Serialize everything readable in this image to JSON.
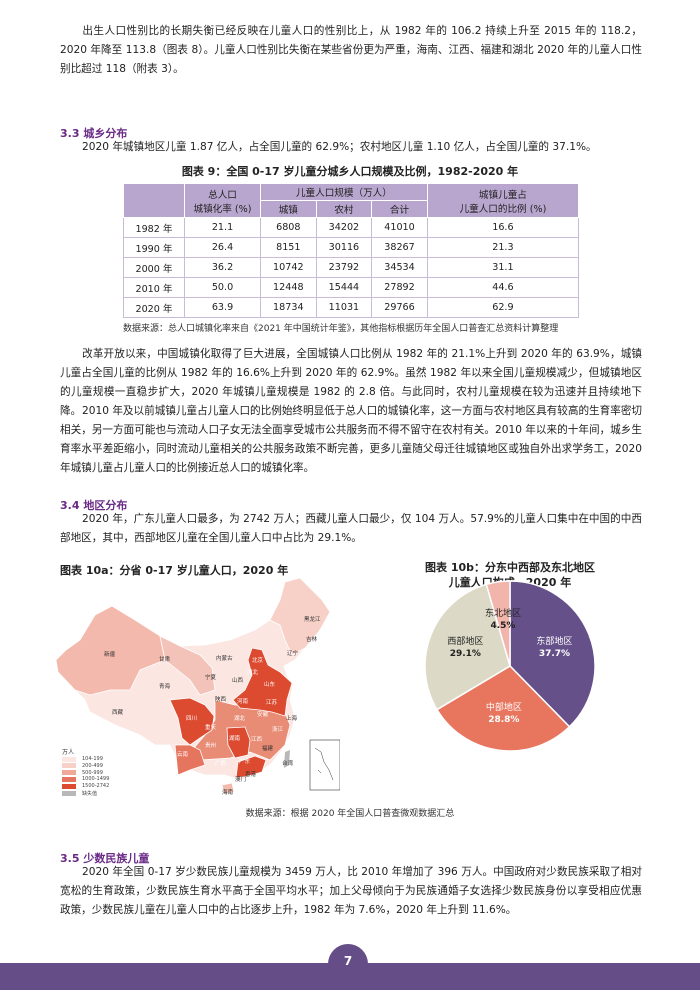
{
  "paragraphs": {
    "p1": "出生人口性别比的长期失衡已经反映在儿童人口的性别比上，从 1982 年的 106.2 持续上升至 2015 年的 118.2，2020 年降至 113.8（图表 8）。儿童人口性别比失衡在某些省份更为严重，海南、江西、福建和湖北 2020 年的儿童人口性别比超过 118（附表 3）。",
    "s33_title": "3.3 城乡分布",
    "p2": "2020 年城镇地区儿童 1.87 亿人，占全国儿童的 62.9%；农村地区儿童 1.10 亿人，占全国儿童的 37.1%。",
    "p3": "改革开放以来，中国城镇化取得了巨大进展，全国城镇人口比例从 1982 年的 21.1%上升到 2020 年的 63.9%，城镇儿童占全国儿童的比例从 1982 年的 16.6%上升到 2020 年的 62.9%。虽然 1982 年以来全国儿童规模减少，但城镇地区的儿童规模一直稳步扩大，2020 年城镇儿童规模是 1982 的 2.8 倍。与此同时，农村儿童规模在较为迅速并且持续地下降。",
    "p4": "2010 年及以前城镇儿童占儿童人口的比例始终明显低于总人口的城镇化率，这一方面与农村地区具有较高的生育率密切相关，另一方面可能也与流动人口子女无法全面享受城市公共服务而不得不留守在农村有关。2010 年以来的十年间，城乡生育率水平差距缩小，同时流动儿童相关的公共服务政策不断完善，更多儿童随父母迁往城镇地区或独自外出求学务工，2020 年城镇儿童占儿童人口的比例接近总人口的城镇化率。",
    "s34_title": "3.4 地区分布",
    "p5": "2020 年，广东儿童人口最多，为 2742 万人；西藏儿童人口最少，仅 104 万人。57.9%的儿童人口集中在中国的中西部地区，其中，西部地区儿童在全国儿童人口中占比为 29.1%。",
    "s35_title": "3.5 少数民族儿童",
    "p6": "2020 年全国 0-17 岁少数民族儿童规模为 3459 万人，比 2010 年增加了 396 万人。中国政府对少数民族采取了相对宽松的生育政策，少数民族生育水平高于全国平均水平；加上父母倾向于为民族通婚子女选择少数民族身份以享受相应优惠政策，少数民族儿童在儿童人口中的占比逐步上升，1982 年为 7.6%，2020 年上升到 11.6%。"
  },
  "table9": {
    "caption": "图表 9：全国 0-17 岁儿童分城乡人口规模及比例，1982-2020 年",
    "h_urbanization": "总人口\n城镇化率 (%)",
    "h_urbanization_1": "总人口",
    "h_urbanization_2": "城镇化率 (%)",
    "h_children": "儿童人口规模（万人）",
    "h_urban": "城镇",
    "h_rural": "农村",
    "h_total": "合计",
    "h_share_1": "城镇儿童占",
    "h_share_2": "儿童人口的比例 (%)",
    "rows": [
      [
        "1982 年",
        "21.1",
        "6808",
        "34202",
        "41010",
        "16.6"
      ],
      [
        "1990 年",
        "26.4",
        "8151",
        "30116",
        "38267",
        "21.3"
      ],
      [
        "2000 年",
        "36.2",
        "10742",
        "23792",
        "34534",
        "31.1"
      ],
      [
        "2010 年",
        "50.0",
        "12448",
        "15444",
        "27892",
        "44.6"
      ],
      [
        "2020 年",
        "63.9",
        "18734",
        "11031",
        "29766",
        "62.9"
      ]
    ],
    "source": "数据来源：总人口城镇化率来自《2021 年中国统计年鉴》，其他指标根据历年全国人口普查汇总资料计算整理"
  },
  "fig10a": {
    "caption": "图表 10a：分省 0-17 岁儿童人口，2020 年",
    "provinces": [
      "新疆",
      "西藏",
      "青海",
      "甘肃",
      "内蒙古",
      "黑龙江",
      "吉林",
      "辽宁",
      "北京",
      "河北",
      "山东",
      "山西",
      "宁夏",
      "陕西",
      "河南",
      "江苏",
      "安徽",
      "上海",
      "四川",
      "重庆",
      "湖北",
      "浙江",
      "湖南",
      "江西",
      "贵州",
      "福建",
      "云南",
      "广西",
      "广东",
      "台湾",
      "香港",
      "澳门",
      "海南"
    ],
    "legend_unit": "万人",
    "legend": [
      {
        "label": "104-199",
        "color": "#fbe6e2"
      },
      {
        "label": "200-499",
        "color": "#f7d0c8"
      },
      {
        "label": "500-999",
        "color": "#f0a898"
      },
      {
        "label": "1000-1499",
        "color": "#e5755e"
      },
      {
        "label": "1500-2742",
        "color": "#dc4a30"
      },
      {
        "label": "缺失值",
        "color": "#b8b8b8"
      }
    ]
  },
  "chart_data": {
    "type": "pie",
    "title": "图表 10b：分东中西部及东北地区儿童人口构成，2020 年",
    "title_1": "图表 10b：分东中西部及东北地区",
    "title_2": "儿童人口构成，2020 年",
    "slices": [
      {
        "name": "东部地区",
        "value": 37.7,
        "label": "37.7%",
        "color": "#65508a"
      },
      {
        "name": "中部地区",
        "value": 28.8,
        "label": "28.8%",
        "color": "#e8765e"
      },
      {
        "name": "西部地区",
        "value": 29.1,
        "label": "29.1%",
        "color": "#dcd9c6"
      },
      {
        "name": "东北地区",
        "value": 4.5,
        "label": "4.5%",
        "color": "#f2b5ab"
      }
    ]
  },
  "fig10_source": "数据来源：根据 2020 年全国人口普查微观数据汇总",
  "page_number": "7"
}
